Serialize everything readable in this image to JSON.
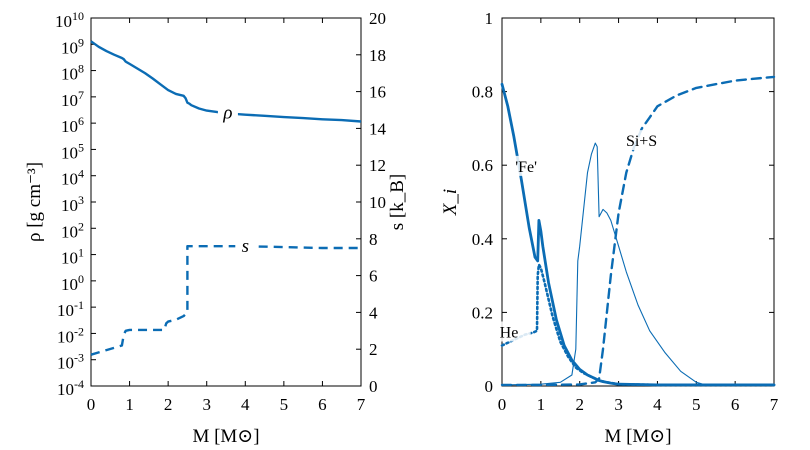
{
  "line_color": "#0b6cb4",
  "chart_data": [
    {
      "type": "line",
      "panel": "left",
      "xlabel": "M  [M⊙]",
      "ylabel_left": "ρ  [g cm⁻³]",
      "ylabel_right": "s  [k_B]",
      "xlim": [
        0,
        7
      ],
      "xticks": [
        "0",
        "1",
        "2",
        "3",
        "4",
        "5",
        "6",
        "7"
      ],
      "left_axis": {
        "scale": "log",
        "ylim_exp": [
          -4,
          10
        ],
        "tick_labels": [
          "10",
          "10",
          "10",
          "10",
          "10",
          "10",
          "10",
          "10",
          "10",
          "10",
          "10",
          "10",
          "10",
          "10",
          "10"
        ],
        "tick_exponents": [
          "-4",
          "-3",
          "-2",
          "-1",
          "0",
          "1",
          "2",
          "3",
          "4",
          "5",
          "6",
          "7",
          "8",
          "9",
          "10"
        ]
      },
      "right_axis": {
        "scale": "linear",
        "ylim": [
          0,
          20
        ],
        "tick_labels": [
          "0",
          "2",
          "4",
          "6",
          "8",
          "10",
          "12",
          "14",
          "16",
          "18",
          "20"
        ]
      },
      "series": [
        {
          "name": "ρ",
          "axis": "left",
          "style": "solid",
          "x": [
            0,
            0.2,
            0.4,
            0.6,
            0.8,
            0.85,
            0.9,
            1.0,
            1.2,
            1.4,
            1.6,
            1.8,
            2.0,
            2.2,
            2.4,
            2.45,
            2.5,
            2.55,
            2.6,
            2.8,
            3.0,
            3.3,
            3.6,
            4.0,
            4.5,
            5.0,
            5.5,
            6.0,
            6.5,
            7.0
          ],
          "y": [
            1300000000.0,
            800000000.0,
            550000000.0,
            400000000.0,
            300000000.0,
            270000000.0,
            220000000.0,
            180000000.0,
            120000000.0,
            80000000.0,
            50000000.0,
            30000000.0,
            18000000.0,
            13000000.0,
            11000000.0,
            9000000.0,
            6000000.0,
            5500000.0,
            4800000.0,
            3600000.0,
            3000000.0,
            2600000.0,
            2300000.0,
            2100000.0,
            1900000.0,
            1700000.0,
            1550000.0,
            1400000.0,
            1300000.0,
            1150000.0
          ],
          "label": "ρ",
          "label_at": [
            3.55,
            2500000.0
          ]
        },
        {
          "name": "s",
          "axis": "right",
          "style": "dashed",
          "x": [
            0,
            0.4,
            0.8,
            0.85,
            0.9,
            1.0,
            1.5,
            1.9,
            1.95,
            2.0,
            2.2,
            2.4,
            2.45,
            2.5,
            2.5,
            3.0,
            4.0,
            5.0,
            6.0,
            7.0
          ],
          "y": [
            1.7,
            1.95,
            2.2,
            2.8,
            3.0,
            3.05,
            3.05,
            3.05,
            3.4,
            3.5,
            3.6,
            3.8,
            3.9,
            4.0,
            7.6,
            7.6,
            7.6,
            7.55,
            7.5,
            7.5
          ],
          "label": "s",
          "label_at": [
            4.0,
            7.6
          ]
        }
      ]
    },
    {
      "type": "line",
      "panel": "right",
      "xlabel": "M  [M⊙]",
      "ylabel": "X_i",
      "xlim": [
        0,
        7
      ],
      "ylim": [
        0,
        1
      ],
      "xticks": [
        "0",
        "1",
        "2",
        "3",
        "4",
        "5",
        "6",
        "7"
      ],
      "yticks": [
        "0",
        "0.2",
        "0.4",
        "0.6",
        "0.8",
        "1"
      ],
      "series": [
        {
          "name": "'Fe'",
          "style": "thick-solid",
          "x": [
            0,
            0.15,
            0.3,
            0.5,
            0.7,
            0.85,
            0.92,
            0.95,
            1.0,
            1.05,
            1.2,
            1.4,
            1.6,
            1.8,
            2.0,
            2.2,
            2.4,
            2.5,
            2.6,
            2.8,
            3.0,
            3.5,
            4.0,
            5.0,
            6.0,
            7.0
          ],
          "y": [
            0.82,
            0.76,
            0.68,
            0.56,
            0.43,
            0.35,
            0.34,
            0.45,
            0.42,
            0.38,
            0.28,
            0.18,
            0.11,
            0.07,
            0.045,
            0.03,
            0.02,
            0.015,
            0.012,
            0.008,
            0.005,
            0.004,
            0.003,
            0.003,
            0.003,
            0.003
          ],
          "label": "'Fe'",
          "label_at": [
            0.7,
            0.59
          ]
        },
        {
          "name": "He",
          "style": "dotted",
          "x": [
            0,
            0.2,
            0.4,
            0.6,
            0.8,
            0.9,
            0.92,
            0.95,
            1.0,
            1.1,
            1.3,
            1.5,
            1.7,
            1.9,
            2.1,
            2.3,
            2.5,
            2.7,
            3.0,
            4.0,
            5.0,
            6.0,
            7.0
          ],
          "y": [
            0.11,
            0.12,
            0.13,
            0.14,
            0.145,
            0.15,
            0.3,
            0.33,
            0.32,
            0.28,
            0.19,
            0.12,
            0.08,
            0.05,
            0.035,
            0.025,
            0.015,
            0.01,
            0.005,
            0.003,
            0.003,
            0.003,
            0.003
          ],
          "label": "He",
          "label_at": [
            0.3,
            0.14
          ]
        },
        {
          "name": "thin",
          "style": "thin-solid",
          "x": [
            0,
            1.0,
            1.5,
            1.8,
            1.9,
            1.95,
            2.0,
            2.1,
            2.2,
            2.3,
            2.4,
            2.45,
            2.5,
            2.55,
            2.6,
            2.7,
            2.8,
            3.0,
            3.2,
            3.5,
            3.8,
            4.2,
            4.6,
            5.0,
            5.2,
            6.0,
            7.0
          ],
          "y": [
            0.003,
            0.005,
            0.01,
            0.03,
            0.1,
            0.34,
            0.38,
            0.48,
            0.58,
            0.63,
            0.66,
            0.65,
            0.46,
            0.47,
            0.48,
            0.47,
            0.45,
            0.38,
            0.31,
            0.22,
            0.15,
            0.09,
            0.04,
            0.01,
            0.004,
            0.003,
            0.003
          ]
        },
        {
          "name": "Si+S",
          "style": "dashed",
          "x": [
            0,
            1.0,
            2.0,
            2.4,
            2.5,
            2.6,
            2.8,
            3.0,
            3.2,
            3.4,
            3.6,
            3.8,
            4.0,
            4.5,
            5.0,
            5.5,
            6.0,
            6.5,
            7.0
          ],
          "y": [
            0.003,
            0.003,
            0.004,
            0.01,
            0.02,
            0.1,
            0.3,
            0.47,
            0.58,
            0.65,
            0.7,
            0.73,
            0.76,
            0.79,
            0.81,
            0.82,
            0.83,
            0.835,
            0.84
          ],
          "label": "Si+S",
          "label_at": [
            3.55,
            0.66
          ]
        }
      ]
    }
  ]
}
